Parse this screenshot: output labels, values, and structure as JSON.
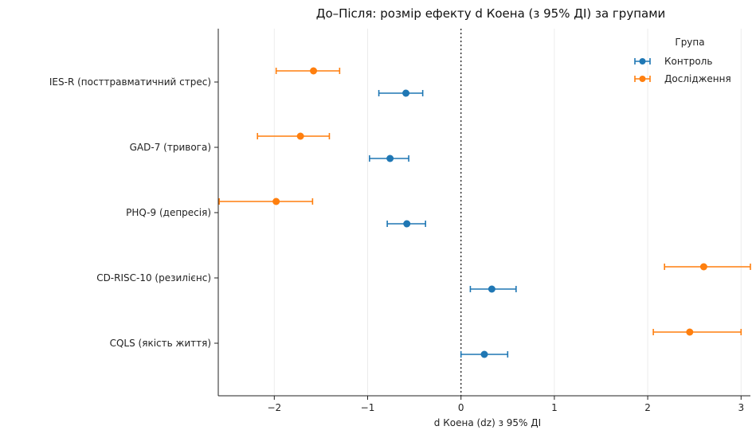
{
  "chart_data": {
    "type": "scatter",
    "title": "До–Після: розмір ефекту d Коена (з 95% ДІ) за групами",
    "xlabel": "d Коена (dz) з 95% ДІ",
    "ylabel": "",
    "xlim": [
      -2.6,
      3.1
    ],
    "xticks": [
      -2,
      -1,
      0,
      1,
      2,
      3
    ],
    "xtick_labels": [
      "−2",
      "−1",
      "0",
      "1",
      "2",
      "3"
    ],
    "grid": "vertical",
    "reference_line": 0,
    "legend": {
      "title": "Група",
      "position": "top-right"
    },
    "categories": [
      "IES-R (посттравматичний стрес)",
      "GAD-7 (тривога)",
      "PHQ-9 (депресія)",
      "CD-RISC-10 (резилієнс)",
      "CQLS (якість життя)"
    ],
    "series": [
      {
        "name": "Контроль",
        "color": "#1f77b4",
        "values": [
          -0.59,
          -0.76,
          -0.58,
          0.33,
          0.25
        ],
        "ci_low": [
          -0.88,
          -0.98,
          -0.79,
          0.1,
          0.0
        ],
        "ci_high": [
          -0.41,
          -0.56,
          -0.38,
          0.59,
          0.5
        ]
      },
      {
        "name": "Дослідження",
        "color": "#ff7f0e",
        "values": [
          -1.58,
          -1.72,
          -1.98,
          2.6,
          2.45
        ],
        "ci_low": [
          -1.98,
          -2.18,
          -2.59,
          2.18,
          2.06
        ],
        "ci_high": [
          -1.3,
          -1.41,
          -1.59,
          3.1,
          3.0
        ]
      }
    ]
  }
}
